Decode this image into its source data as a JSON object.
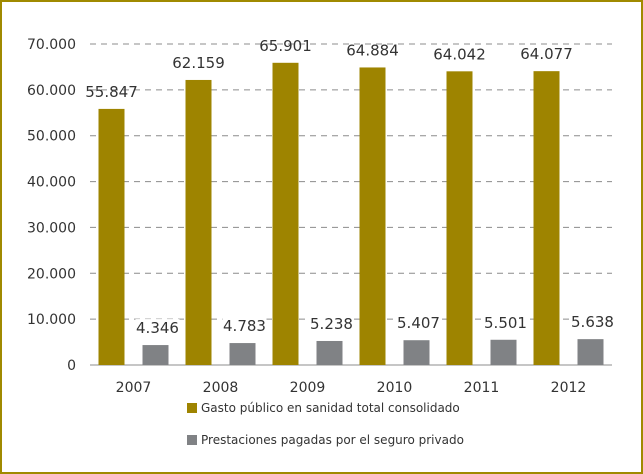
{
  "chart_data": {
    "type": "bar",
    "categories": [
      "2007",
      "2008",
      "2009",
      "2010",
      "2011",
      "2012"
    ],
    "series": [
      {
        "name": "Gasto público en sanidad total consolidado",
        "values": [
          55847,
          62159,
          65901,
          64884,
          64042,
          64077
        ],
        "labels": [
          "55.847",
          "62.159",
          "65.901",
          "64.884",
          "64.042",
          "64.077"
        ],
        "color": "#9e8400"
      },
      {
        "name": "Prestaciones pagadas por el seguro privado",
        "values": [
          4346,
          4783,
          5238,
          5407,
          5501,
          5638
        ],
        "labels": [
          "4.346",
          "4.783",
          "5.238",
          "5.407",
          "5.501",
          "5.638"
        ],
        "color": "#808285"
      }
    ],
    "ylim": [
      0,
      70000
    ],
    "yticks": [
      {
        "value": 0,
        "label": "0"
      },
      {
        "value": 10000,
        "label": "10.000"
      },
      {
        "value": 20000,
        "label": "20.000"
      },
      {
        "value": 30000,
        "label": "30.000"
      },
      {
        "value": 40000,
        "label": "40.000"
      },
      {
        "value": 50000,
        "label": "50.000"
      },
      {
        "value": 60000,
        "label": "60.000"
      },
      {
        "value": 70000,
        "label": "70.000"
      }
    ],
    "grid": true,
    "legend": "bottom",
    "title": "",
    "xlabel": "",
    "ylabel": ""
  }
}
